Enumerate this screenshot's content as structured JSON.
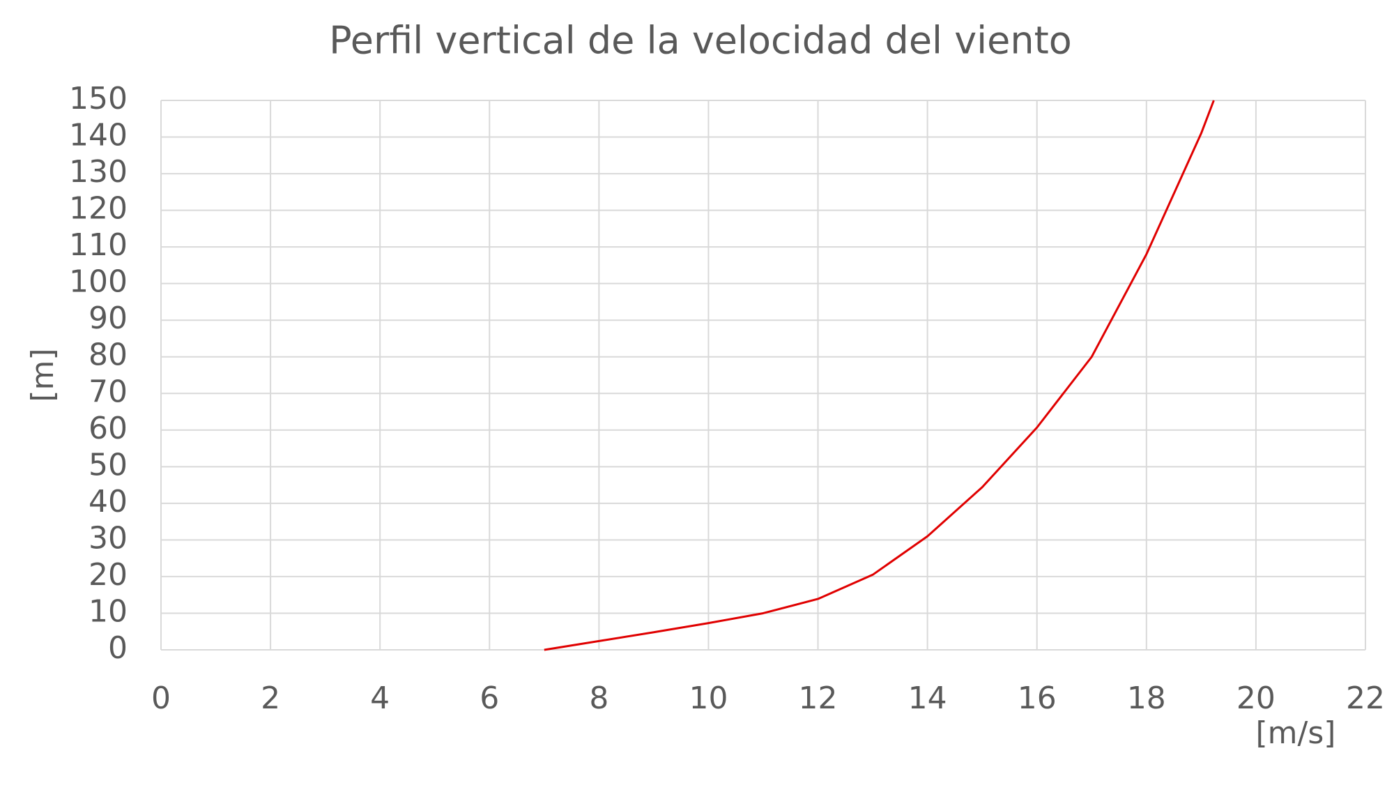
{
  "chart_data": {
    "type": "line",
    "title": "Perfil vertical de la velocidad del viento",
    "x_label": "[m/s]",
    "y_label": "[m]",
    "x": [
      7,
      8,
      9,
      10,
      11,
      12,
      13,
      14,
      15,
      16,
      17,
      18,
      19,
      19.23
    ],
    "values": [
      0,
      2.4,
      4.8,
      7.3,
      10,
      13.9,
      20.5,
      31,
      44.4,
      60.7,
      80,
      108,
      141,
      150
    ],
    "color": "#e00000",
    "xlim": [
      0,
      22
    ],
    "xticks": [
      0,
      2,
      4,
      6,
      8,
      10,
      12,
      14,
      16,
      18,
      20,
      22
    ],
    "ylim": [
      0,
      150
    ],
    "yticks": [
      0,
      10,
      20,
      30,
      40,
      50,
      60,
      70,
      80,
      90,
      100,
      110,
      120,
      130,
      140,
      150
    ],
    "grid": true
  }
}
